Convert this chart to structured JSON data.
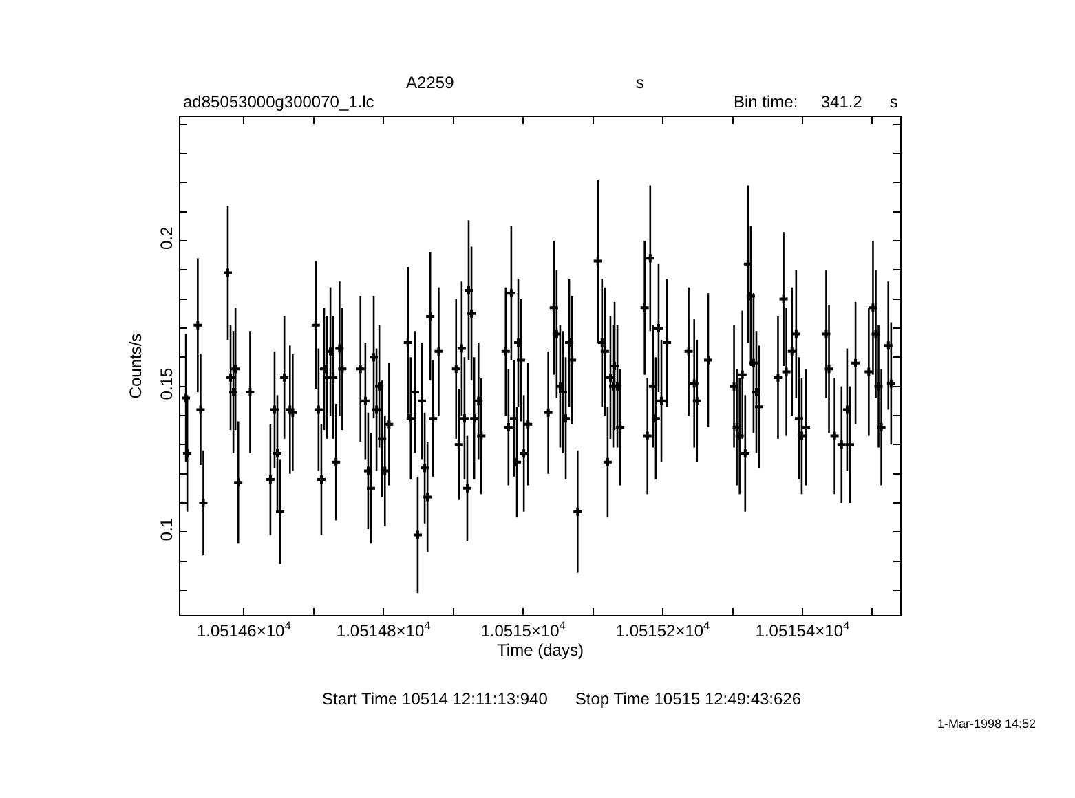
{
  "chart_data": {
    "type": "scatter",
    "title": "A2259",
    "xlabel": "Time (days)",
    "ylabel": "Counts/s",
    "annotations": [
      "s",
      "ad85053000g300070_1.lc",
      "Bin time:     341.2      s",
      "Start Time 10514 12:11:13:940      Stop Time 10515 12:49:43:626",
      "1-Mar-1998 14:52"
    ],
    "xlim": [
      10514.509,
      10515.54
    ],
    "ylim": [
      0.0715,
      0.2425
    ],
    "xticks": [
      {
        "value": 10514.6,
        "label": "1.05146×10$^{4}$"
      },
      {
        "value": 10514.7,
        "label": null
      },
      {
        "value": 10514.8,
        "label": "1.05148×10$^{4}$"
      },
      {
        "value": 10514.9,
        "label": null
      },
      {
        "value": 10515.0,
        "label": "1.0515×10$^{4}$"
      },
      {
        "value": 10515.1,
        "label": null
      },
      {
        "value": 10515.2,
        "label": "1.05152×10$^{4}$"
      },
      {
        "value": 10515.3,
        "label": null
      },
      {
        "value": 10515.4,
        "label": "1.05154×10$^{4}$"
      },
      {
        "value": 10515.5,
        "label": null
      }
    ],
    "yticks": [
      {
        "value": 0.08,
        "label": null
      },
      {
        "value": 0.09,
        "label": null
      },
      {
        "value": 0.1,
        "label": "0.1"
      },
      {
        "value": 0.11,
        "label": null
      },
      {
        "value": 0.12,
        "label": null
      },
      {
        "value": 0.13,
        "label": null
      },
      {
        "value": 0.14,
        "label": null
      },
      0.15,
      {
        "value": 0.16,
        "label": null
      },
      {
        "value": 0.17,
        "label": null
      },
      {
        "value": 0.18,
        "label": null
      },
      {
        "value": 0.19,
        "label": null
      },
      {
        "value": 0.2,
        "label": "0.2"
      },
      {
        "value": 0.21,
        "label": null
      },
      {
        "value": 0.22,
        "label": null
      },
      {
        "value": 0.23,
        "label": null
      },
      {
        "value": 0.24,
        "label": null
      }
    ],
    "marker": "cross",
    "series": [
      {
        "color": "#000000",
        "x": [
          10514.517,
          10514.519,
          10514.534,
          10514.538,
          10514.542,
          10514.577,
          10514.581,
          10514.585,
          10514.588,
          10514.592,
          10514.609,
          10514.638,
          10514.644,
          10514.648,
          10514.652,
          10514.658,
          10514.666,
          10514.67,
          10514.703,
          10514.707,
          10514.711,
          10514.715,
          10514.719,
          10514.724,
          10514.728,
          10514.732,
          10514.737,
          10514.741,
          10514.767,
          10514.774,
          10514.778,
          10514.782,
          10514.786,
          10514.79,
          10514.794,
          10514.798,
          10514.802,
          10514.808,
          10514.835,
          10514.839,
          10514.845,
          10514.849,
          10514.855,
          10514.859,
          10514.863,
          10514.867,
          10514.871,
          10514.879,
          10514.904,
          10514.908,
          10514.912,
          10514.916,
          10514.92,
          10514.922,
          10514.926,
          10514.93,
          10514.936,
          10514.94,
          10514.975,
          10514.979,
          10514.983,
          10514.987,
          10514.991,
          10514.993,
          10514.997,
          10515.001,
          10515.007,
          10515.036,
          10515.044,
          10515.048,
          10515.053,
          10515.057,
          10515.061,
          10515.066,
          10515.07,
          10515.078,
          10515.107,
          10515.113,
          10515.117,
          10515.121,
          10515.125,
          10515.129,
          10515.131,
          10515.135,
          10515.139,
          10515.174,
          10515.178,
          10515.182,
          10515.186,
          10515.19,
          10515.194,
          10515.198,
          10515.206,
          10515.237,
          10515.245,
          10515.249,
          10515.265,
          10515.302,
          10515.306,
          10515.31,
          10515.314,
          10515.318,
          10515.322,
          10515.326,
          10515.33,
          10515.334,
          10515.338,
          10515.365,
          10515.373,
          10515.377,
          10515.385,
          10515.391,
          10515.395,
          10515.399,
          10515.405,
          10515.434,
          10515.438,
          10515.446,
          10515.456,
          10515.464,
          10515.468,
          10515.476,
          10515.495,
          10515.501,
          10515.505,
          10515.509,
          10515.513,
          10515.523,
          10515.527
        ],
        "values": [
          0.146,
          0.127,
          0.171,
          0.142,
          0.11,
          0.189,
          0.153,
          0.148,
          0.156,
          0.117,
          0.148,
          0.118,
          0.142,
          0.127,
          0.107,
          0.153,
          0.142,
          0.141,
          0.171,
          0.142,
          0.118,
          0.156,
          0.153,
          0.162,
          0.153,
          0.124,
          0.163,
          0.156,
          0.156,
          0.145,
          0.121,
          0.115,
          0.16,
          0.142,
          0.15,
          0.132,
          0.121,
          0.137,
          0.165,
          0.139,
          0.148,
          0.099,
          0.145,
          0.122,
          0.112,
          0.174,
          0.139,
          0.162,
          0.156,
          0.13,
          0.163,
          0.139,
          0.115,
          0.183,
          0.175,
          0.139,
          0.145,
          0.133,
          0.162,
          0.136,
          0.182,
          0.139,
          0.124,
          0.165,
          0.159,
          0.127,
          0.137,
          0.141,
          0.177,
          0.168,
          0.15,
          0.148,
          0.139,
          0.165,
          0.159,
          0.107,
          0.193,
          0.165,
          0.162,
          0.124,
          0.153,
          0.15,
          0.157,
          0.15,
          0.136,
          0.177,
          0.133,
          0.194,
          0.15,
          0.139,
          0.17,
          0.145,
          0.165,
          0.162,
          0.151,
          0.145,
          0.159,
          0.15,
          0.136,
          0.133,
          0.154,
          0.127,
          0.192,
          0.181,
          0.158,
          0.148,
          0.143,
          0.153,
          0.18,
          0.155,
          0.162,
          0.168,
          0.139,
          0.133,
          0.136,
          0.168,
          0.156,
          0.133,
          0.13,
          0.142,
          0.13,
          0.158,
          0.155,
          0.177,
          0.168,
          0.15,
          0.136,
          0.164,
          0.151
        ],
        "errors": [
          0.022,
          0.02,
          0.023,
          0.019,
          0.018,
          0.023,
          0.018,
          0.021,
          0.021,
          0.021,
          0.021,
          0.019,
          0.02,
          0.02,
          0.018,
          0.021,
          0.022,
          0.02,
          0.022,
          0.021,
          0.019,
          0.021,
          0.021,
          0.022,
          0.021,
          0.02,
          0.023,
          0.021,
          0.025,
          0.02,
          0.02,
          0.019,
          0.021,
          0.021,
          0.021,
          0.02,
          0.019,
          0.021,
          0.026,
          0.021,
          0.021,
          0.02,
          0.02,
          0.019,
          0.019,
          0.022,
          0.02,
          0.022,
          0.024,
          0.019,
          0.023,
          0.021,
          0.018,
          0.024,
          0.023,
          0.021,
          0.02,
          0.02,
          0.022,
          0.02,
          0.023,
          0.02,
          0.019,
          0.022,
          0.021,
          0.02,
          0.021,
          0.021,
          0.023,
          0.022,
          0.021,
          0.021,
          0.021,
          0.022,
          0.022,
          0.021,
          0.028,
          0.022,
          0.022,
          0.019,
          0.021,
          0.021,
          0.022,
          0.021,
          0.02,
          0.023,
          0.02,
          0.025,
          0.021,
          0.021,
          0.022,
          0.021,
          0.022,
          0.022,
          0.022,
          0.021,
          0.023,
          0.021,
          0.02,
          0.02,
          0.022,
          0.02,
          0.027,
          0.024,
          0.024,
          0.021,
          0.021,
          0.021,
          0.023,
          0.022,
          0.022,
          0.022,
          0.021,
          0.02,
          0.02,
          0.022,
          0.022,
          0.02,
          0.02,
          0.021,
          0.02,
          0.021,
          0.022,
          0.023,
          0.022,
          0.021,
          0.02,
          0.022,
          0.021
        ]
      }
    ]
  }
}
